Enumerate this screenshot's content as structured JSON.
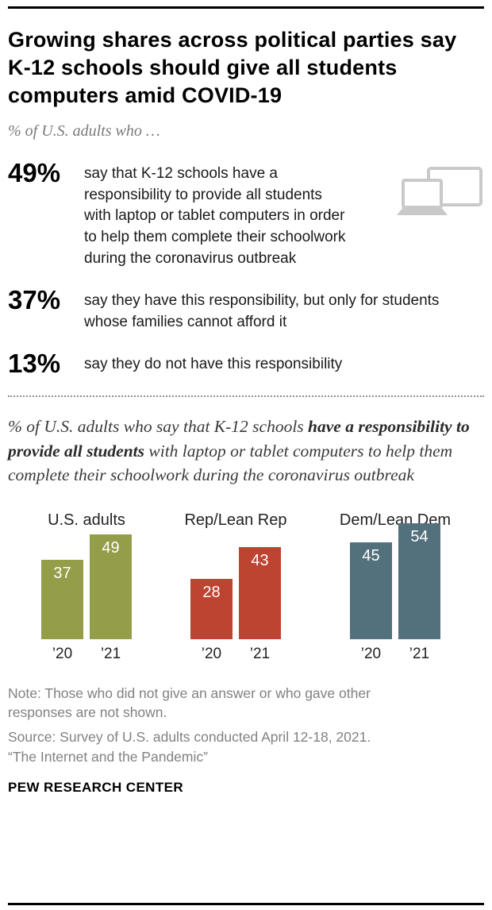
{
  "header": {
    "title": "Growing shares across political parties say K-12 schools should give all students computers amid COVID-19",
    "subtitle": "% of U.S. adults who …"
  },
  "stats": [
    {
      "value": "49%",
      "text": "say that K-12 schools have a responsibility to provide all students with laptop or tablet computers in order to help them complete their schoolwork during the coronavirus outbreak",
      "icon": "laptop-and-monitor-icon"
    },
    {
      "value": "37%",
      "text": "say they have this responsibility, but only for students whose families cannot afford it"
    },
    {
      "value": "13%",
      "text": "say they do not have this responsibility"
    }
  ],
  "chart_intro": {
    "part1": "% of U.S. adults who say that K-12 schools ",
    "part2_bold": "have a responsibility to provide all students",
    "part3": " with laptop or tablet computers to help them complete their schoolwork during the coronavirus outbreak"
  },
  "chart_data": {
    "type": "bar",
    "categories": [
      "’20",
      "’21"
    ],
    "groups": [
      {
        "label": "U.S. adults",
        "color": "#949d48",
        "values": [
          37,
          49
        ]
      },
      {
        "label": "Rep/Lean Rep",
        "color": "#bc4431",
        "values": [
          28,
          43
        ]
      },
      {
        "label": "Dem/Lean Dem",
        "color": "#53707d",
        "values": [
          45,
          54
        ]
      }
    ],
    "ylim": [
      0,
      56
    ],
    "value_label_color": "#ffffff",
    "legend_position": "none",
    "grid": false
  },
  "footer": {
    "note": "Note: Those who did not give an answer or who gave other responses are not shown.",
    "source": "Source: Survey of U.S. adults conducted April 12-18, 2021.",
    "report": "“The Internet and the Pandemic”",
    "brand": "PEW RESEARCH CENTER"
  },
  "icon_color": "#c9c9c9"
}
